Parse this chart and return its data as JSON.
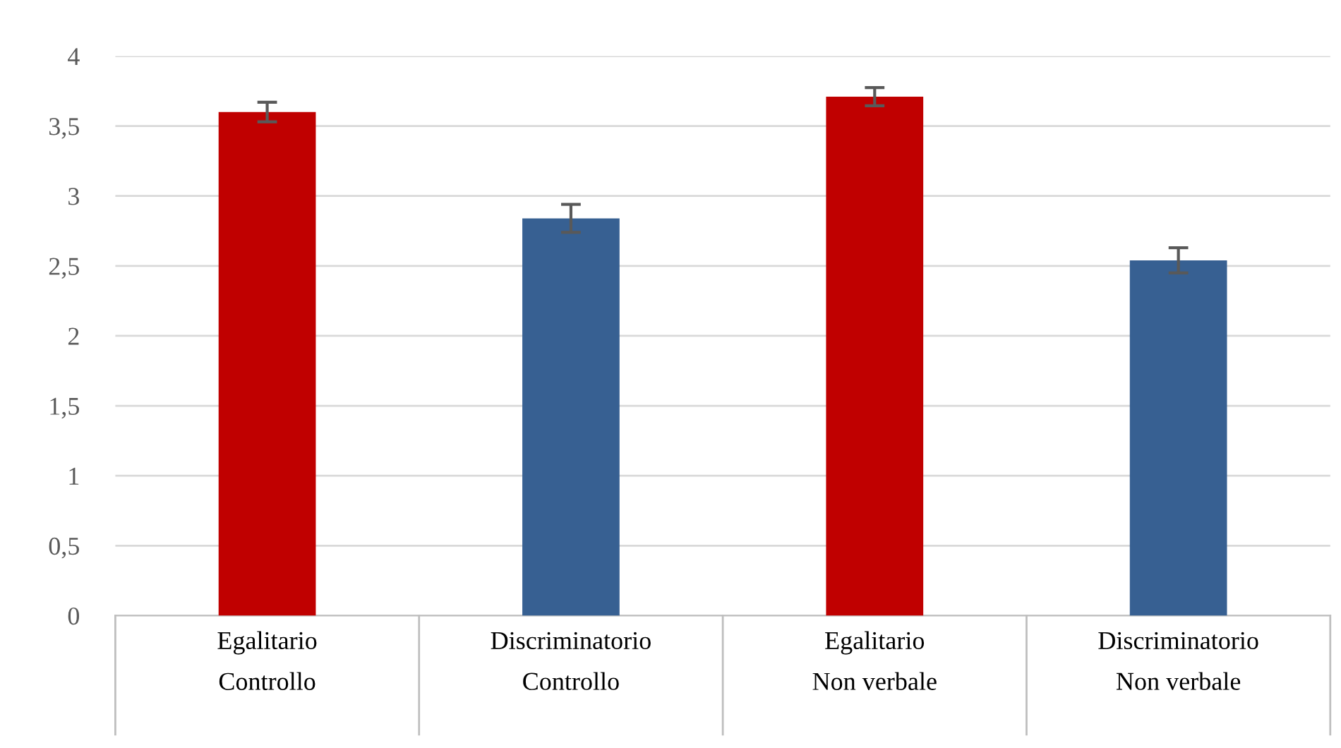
{
  "chart_data": {
    "type": "bar",
    "categories": [
      "Egalitario\nControllo",
      "Discriminatorio\nControllo",
      "Egalitario\nNon verbale",
      "Discriminatorio\nNon verbale"
    ],
    "values": [
      3.6,
      2.84,
      3.71,
      2.54
    ],
    "errors": [
      0.07,
      0.1,
      0.065,
      0.09
    ],
    "colors": [
      "#c00000",
      "#376092",
      "#c00000",
      "#376092"
    ],
    "ylim": [
      0,
      4
    ],
    "yticks": [
      0,
      {
        "value": 0.5,
        "label": "0,5"
      },
      1,
      {
        "value": 1.5,
        "label": "1,5"
      },
      2,
      {
        "value": 2.5,
        "label": "2,5"
      },
      3,
      {
        "value": 3.5,
        "label": "3,5"
      },
      4
    ],
    "grid": "y"
  }
}
